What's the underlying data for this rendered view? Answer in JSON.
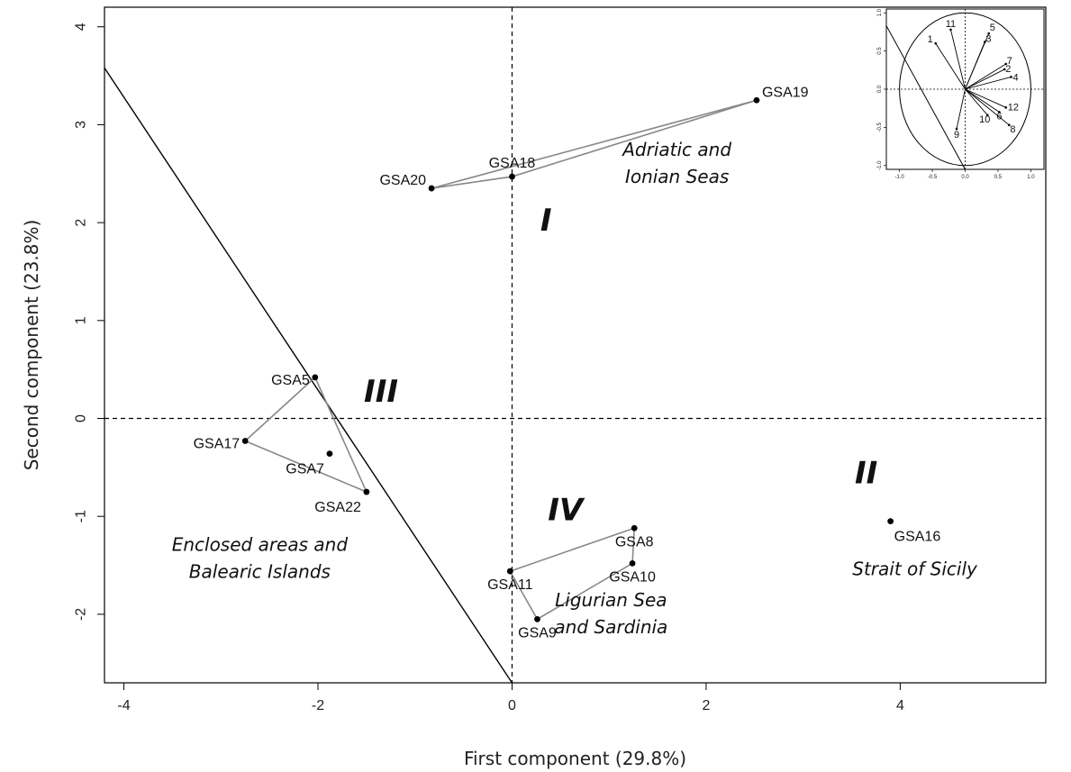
{
  "chart_data": {
    "type": "scatter",
    "xlabel": "First component (29.8%)",
    "ylabel": "Second component (23.8%)",
    "xlim": [
      -4.2,
      5.5
    ],
    "ylim": [
      -2.7,
      4.2
    ],
    "x_ticks": [
      -4,
      -2,
      0,
      2,
      4
    ],
    "y_ticks": [
      -2,
      -1,
      0,
      1,
      2,
      3,
      4
    ],
    "grid": false,
    "reference_lines": {
      "x": 0,
      "y": 0,
      "style": "dashed"
    },
    "points": [
      {
        "name": "GSA19",
        "x": 2.52,
        "y": 3.25
      },
      {
        "name": "GSA18",
        "x": 0.0,
        "y": 2.47
      },
      {
        "name": "GSA20",
        "x": -0.83,
        "y": 2.35
      },
      {
        "name": "GSA5",
        "x": -2.03,
        "y": 0.42
      },
      {
        "name": "GSA17",
        "x": -2.75,
        "y": -0.23
      },
      {
        "name": "GSA7",
        "x": -1.88,
        "y": -0.36
      },
      {
        "name": "GSA22",
        "x": -1.5,
        "y": -0.75
      },
      {
        "name": "GSA8",
        "x": 1.26,
        "y": -1.12
      },
      {
        "name": "GSA10",
        "x": 1.24,
        "y": -1.48
      },
      {
        "name": "GSA11",
        "x": -0.02,
        "y": -1.56
      },
      {
        "name": "GSA9",
        "x": 0.26,
        "y": -2.05
      },
      {
        "name": "GSA16",
        "x": 3.9,
        "y": -1.05
      }
    ],
    "hulls": [
      {
        "group": "I",
        "members": [
          "GSA20",
          "GSA19",
          "GSA18"
        ]
      },
      {
        "group": "III",
        "members": [
          "GSA5",
          "GSA22",
          "GSA17"
        ]
      },
      {
        "group": "IV",
        "members": [
          "GSA11",
          "GSA8",
          "GSA10",
          "GSA9"
        ]
      }
    ],
    "separator_line": {
      "from": [
        -4.2,
        3.58
      ],
      "to": [
        0.0,
        -2.7
      ]
    },
    "quadrant_labels": [
      {
        "text": "I",
        "x": 0.35,
        "y": 1.92
      },
      {
        "text": "II",
        "x": 3.65,
        "y": -0.66
      },
      {
        "text": "III",
        "x": -1.35,
        "y": 0.17
      },
      {
        "text": "IV",
        "x": 0.55,
        "y": -1.04
      }
    ],
    "region_labels": [
      {
        "lines": [
          "Adriatic and",
          "Ionian Seas"
        ],
        "x": 1.7,
        "y": 2.68
      },
      {
        "lines": [
          "Enclosed areas and",
          "Balearic Islands"
        ],
        "x": -2.6,
        "y": -1.35
      },
      {
        "lines": [
          "Ligurian Sea",
          "and Sardinia"
        ],
        "x": 1.02,
        "y": -1.92
      },
      {
        "lines": [
          "Strait of Sicily"
        ],
        "x": 4.15,
        "y": -1.6
      }
    ],
    "inset": {
      "type": "loadings",
      "xlim": [
        -1.2,
        1.2
      ],
      "ylim": [
        -1.05,
        1.05
      ],
      "x_ticks": [
        -1.0,
        -0.5,
        0.0,
        0.5,
        1.0
      ],
      "y_ticks": [
        -1.0,
        -0.5,
        0.0,
        0.5,
        1.0
      ],
      "x_tick_labels": [
        "-1.0",
        "-0.5",
        "0.0",
        "0.5",
        "1.0"
      ],
      "y_tick_labels": [
        "-1.0",
        "-0.5",
        "0.0",
        "0.5",
        "1.0"
      ],
      "unit_circle": true,
      "separator_line": {
        "from": [
          -1.2,
          0.83
        ],
        "to": [
          0.0,
          -1.05
        ]
      },
      "vectors": [
        {
          "label": "1",
          "x": -0.45,
          "y": 0.6
        },
        {
          "label": "11",
          "x": -0.22,
          "y": 0.78
        },
        {
          "label": "5",
          "x": 0.36,
          "y": 0.73
        },
        {
          "label": "3",
          "x": 0.3,
          "y": 0.62
        },
        {
          "label": "7",
          "x": 0.62,
          "y": 0.33
        },
        {
          "label": "2",
          "x": 0.6,
          "y": 0.26
        },
        {
          "label": "4",
          "x": 0.7,
          "y": 0.16
        },
        {
          "label": "12",
          "x": 0.62,
          "y": -0.24
        },
        {
          "label": "6",
          "x": 0.52,
          "y": -0.3
        },
        {
          "label": "10",
          "x": 0.34,
          "y": -0.34
        },
        {
          "label": "8",
          "x": 0.67,
          "y": -0.47
        },
        {
          "label": "9",
          "x": -0.13,
          "y": -0.52
        }
      ]
    }
  }
}
